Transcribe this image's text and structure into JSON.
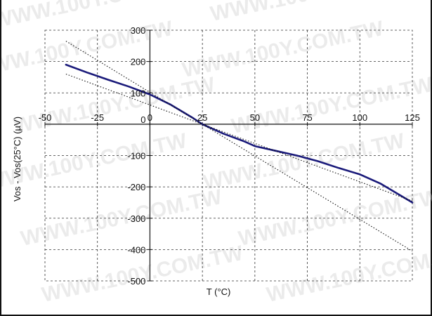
{
  "watermark": "WWW.100Y.COM.TW",
  "chart_data": {
    "type": "line",
    "xlabel": "T (°C)",
    "ylabel": "Vos - Vos(25°C) (µV)",
    "xlim": [
      -50,
      125
    ],
    "ylim": [
      -500,
      300
    ],
    "xticks": [
      -50,
      -25,
      0,
      25,
      50,
      75,
      100,
      125
    ],
    "yticks": [
      300,
      200,
      100,
      0,
      -100,
      -200,
      -300,
      -400,
      -500
    ],
    "grid": true,
    "grid_style": "dashed",
    "colors": {
      "main": "#1a1a7a",
      "bounds": "#111111",
      "grid": "#333333"
    },
    "series": [
      {
        "style": "solid",
        "x": [
          -40,
          -30,
          -20,
          -10,
          0,
          10,
          20,
          25,
          35,
          45,
          50,
          60,
          70,
          80,
          90,
          100,
          110,
          125
        ],
        "y": [
          190,
          165,
          142,
          120,
          95,
          62,
          22,
          0,
          -30,
          -55,
          -70,
          -85,
          -100,
          -118,
          -140,
          -160,
          -190,
          -250
        ]
      },
      {
        "style": "dotted",
        "x": [
          -40,
          25,
          125
        ],
        "y": [
          265,
          0,
          -405
        ]
      },
      {
        "style": "dotted",
        "x": [
          -40,
          25,
          125
        ],
        "y": [
          160,
          0,
          -245
        ]
      }
    ]
  }
}
